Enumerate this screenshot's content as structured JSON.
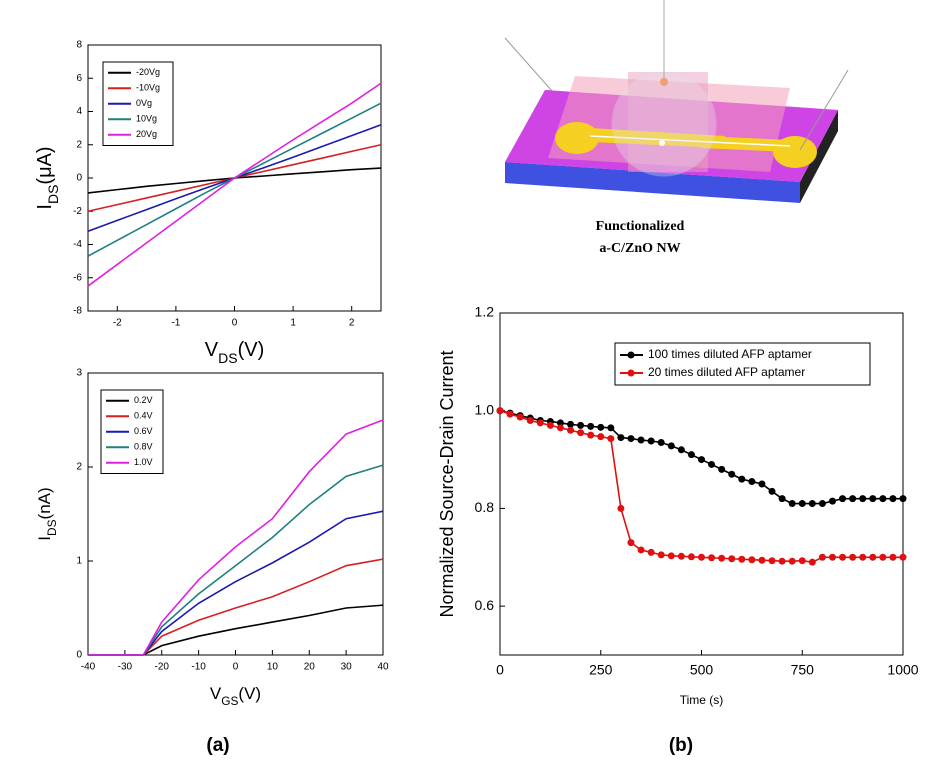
{
  "chart_data": [
    {
      "type": "line",
      "xlabel": {
        "text": "V",
        "sub": "DS",
        "suffix": "(V)"
      },
      "ylabel": {
        "text": "I",
        "sub": "DS",
        "suffix": "(μA)"
      },
      "x": [
        -2.5,
        -2,
        -1.5,
        -1,
        -0.5,
        0,
        0.5,
        1,
        1.5,
        2,
        2.5
      ],
      "xlim": [
        -2.5,
        2.5
      ],
      "xticks": [
        -2,
        -1,
        0,
        1,
        2
      ],
      "ylim": [
        -8,
        8
      ],
      "yticks": [
        -8,
        -6,
        -4,
        -2,
        0,
        2,
        4,
        6,
        8
      ],
      "legend": "upper left",
      "series": [
        {
          "name": "-20Vg",
          "color": "#000000",
          "values": [
            -0.9,
            -0.7,
            -0.5,
            -0.33,
            -0.16,
            0,
            0.12,
            0.25,
            0.37,
            0.5,
            0.6
          ]
        },
        {
          "name": "-10Vg",
          "color": "#d42020",
          "values": [
            -2.0,
            -1.6,
            -1.2,
            -0.8,
            -0.4,
            0,
            0.4,
            0.8,
            1.2,
            1.6,
            2.0
          ]
        },
        {
          "name": "0Vg",
          "color": "#1a1ab0",
          "values": [
            -3.2,
            -2.55,
            -1.9,
            -1.25,
            -0.62,
            0,
            0.62,
            1.25,
            1.9,
            2.55,
            3.2
          ]
        },
        {
          "name": "10Vg",
          "color": "#1f8080",
          "values": [
            -4.7,
            -3.75,
            -2.8,
            -1.85,
            -0.9,
            0,
            0.9,
            1.8,
            2.7,
            3.6,
            4.5
          ]
        },
        {
          "name": "20Vg",
          "color": "#e020e0",
          "values": [
            -6.5,
            -5.2,
            -3.9,
            -2.6,
            -1.3,
            0,
            1.15,
            2.3,
            3.4,
            4.5,
            5.7
          ]
        }
      ]
    },
    {
      "type": "line",
      "xlabel": {
        "text": "V",
        "sub": "GS",
        "suffix": "(V)"
      },
      "ylabel": {
        "text": "I",
        "sub": "DS",
        "suffix": "(nA)"
      },
      "x": [
        -40,
        -30,
        -25,
        -20,
        -10,
        0,
        10,
        20,
        30,
        40
      ],
      "xlim": [
        -40,
        40
      ],
      "xticks": [
        -40,
        -30,
        -20,
        -10,
        0,
        10,
        20,
        30,
        40
      ],
      "ylim": [
        0,
        3
      ],
      "yticks": [
        0,
        1,
        2,
        3
      ],
      "legend": "upper left",
      "series": [
        {
          "name": "0.2V",
          "color": "#000000",
          "values": [
            0,
            0,
            0,
            0.1,
            0.2,
            0.28,
            0.35,
            0.42,
            0.5,
            0.53
          ]
        },
        {
          "name": "0.4V",
          "color": "#d42020",
          "values": [
            0,
            0,
            0,
            0.2,
            0.37,
            0.5,
            0.62,
            0.78,
            0.95,
            1.02
          ]
        },
        {
          "name": "0.6V",
          "color": "#1a1ab0",
          "values": [
            0,
            0,
            0,
            0.25,
            0.55,
            0.78,
            0.98,
            1.2,
            1.45,
            1.53
          ]
        },
        {
          "name": "0.8V",
          "color": "#1f8080",
          "values": [
            0,
            0,
            0,
            0.3,
            0.65,
            0.95,
            1.25,
            1.6,
            1.9,
            2.02
          ]
        },
        {
          "name": "1.0V",
          "color": "#e020e0",
          "values": [
            0,
            0,
            0,
            0.35,
            0.8,
            1.15,
            1.45,
            1.95,
            2.35,
            2.5
          ]
        }
      ]
    },
    {
      "type": "line",
      "marker": "circle",
      "xlabel": "Time (s)",
      "ylabel": "Normalized Source-Drain Current",
      "x": [
        0,
        25,
        50,
        75,
        100,
        125,
        150,
        175,
        200,
        225,
        250,
        275,
        300,
        325,
        350,
        375,
        400,
        425,
        450,
        475,
        500,
        525,
        550,
        575,
        600,
        625,
        650,
        675,
        700,
        725,
        750,
        775,
        800,
        825,
        850,
        875,
        900,
        925,
        950,
        975,
        1000
      ],
      "xlim": [
        0,
        1000
      ],
      "xticks": [
        0,
        250,
        500,
        750,
        1000
      ],
      "ylim": [
        0.5,
        1.2
      ],
      "yticks": [
        0.6,
        0.8,
        {
          "value": 1,
          "label": "1.0"
        },
        1.2
      ],
      "legend": "upper right",
      "series": [
        {
          "name": "100 times diluted AFP aptamer",
          "color": "#000000",
          "values": [
            1.0,
            0.995,
            0.99,
            0.985,
            0.98,
            0.978,
            0.975,
            0.972,
            0.97,
            0.968,
            0.966,
            0.965,
            0.945,
            0.943,
            0.94,
            0.938,
            0.935,
            0.928,
            0.92,
            0.91,
            0.9,
            0.89,
            0.88,
            0.87,
            0.86,
            0.855,
            0.85,
            0.835,
            0.82,
            0.81,
            0.81,
            0.81,
            0.81,
            0.815,
            0.82,
            0.82,
            0.82,
            0.82,
            0.82,
            0.82,
            0.82
          ]
        },
        {
          "name": "20 times diluted AFP aptamer",
          "color": "#e01010",
          "values": [
            1.0,
            0.993,
            0.987,
            0.98,
            0.975,
            0.97,
            0.965,
            0.96,
            0.955,
            0.95,
            0.947,
            0.943,
            0.8,
            0.73,
            0.715,
            0.71,
            0.705,
            0.703,
            0.702,
            0.701,
            0.7,
            0.699,
            0.698,
            0.697,
            0.696,
            0.695,
            0.694,
            0.693,
            0.692,
            0.692,
            0.693,
            0.69,
            0.7,
            0.7,
            0.7,
            0.7,
            0.7,
            0.7,
            0.7,
            0.7,
            0.7
          ]
        }
      ]
    }
  ],
  "diagram": {
    "caption": [
      "Functionalized",
      "a-C/ZnO  NW"
    ]
  },
  "panels": [
    "(a)",
    "(b)"
  ]
}
